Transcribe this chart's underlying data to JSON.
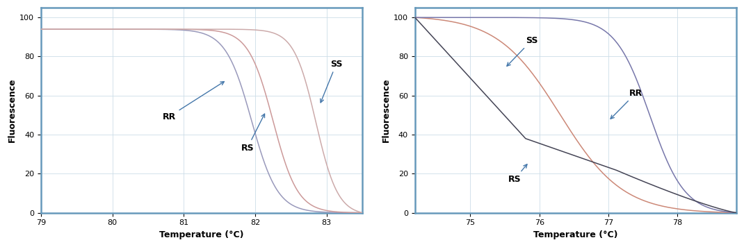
{
  "left": {
    "xlabel": "Temperature (°C)",
    "ylabel": "Fluorescence",
    "xlim": [
      79,
      83.5
    ],
    "ylim": [
      0,
      105
    ],
    "xticks": [
      79,
      80,
      81,
      82,
      83
    ],
    "yticks": [
      0,
      20,
      40,
      60,
      80,
      100
    ],
    "border_color": "#6699bb",
    "grid_color": "#ccdde8"
  },
  "right": {
    "xlabel": "Temperature (°C)",
    "ylabel": "Fluorescence",
    "xlim": [
      74.2,
      78.85
    ],
    "ylim": [
      0,
      105
    ],
    "xticks": [
      75,
      76,
      77,
      78
    ],
    "yticks": [
      0,
      20,
      40,
      60,
      80,
      100
    ],
    "border_color": "#6699bb",
    "grid_color": "#ccdde8"
  }
}
